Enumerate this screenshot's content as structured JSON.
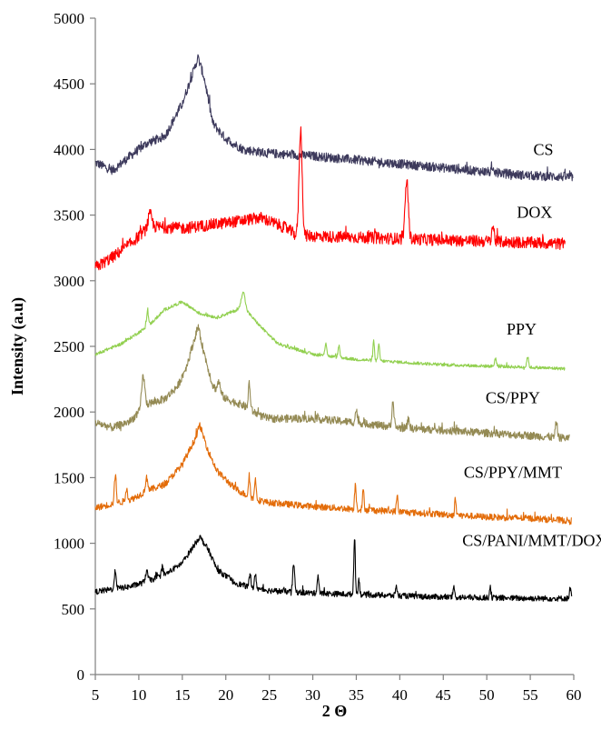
{
  "chart_data": {
    "type": "line",
    "xlabel": "2 Θ",
    "ylabel": "Intensity (a.u)",
    "xlim": [
      5,
      60
    ],
    "ylim": [
      0,
      5000
    ],
    "xticks": [
      5,
      10,
      15,
      20,
      25,
      30,
      35,
      40,
      45,
      50,
      55,
      60
    ],
    "yticks": [
      0,
      500,
      1000,
      1500,
      2000,
      2500,
      3000,
      3500,
      4000,
      4500,
      5000
    ],
    "grid": false,
    "series": [
      {
        "name": "CS",
        "color": "#3d3a5c",
        "x_end": 59.9,
        "label_position": [
          56.5,
          4000
        ],
        "baseline": [
          [
            5,
            3900
          ],
          [
            7,
            3840
          ],
          [
            9,
            3950
          ],
          [
            11,
            4050
          ],
          [
            13,
            4100
          ],
          [
            15,
            4350
          ],
          [
            16.3,
            4600
          ],
          [
            16.8,
            4700
          ],
          [
            17.5,
            4550
          ],
          [
            18.5,
            4200
          ],
          [
            20,
            4080
          ],
          [
            22,
            4000
          ],
          [
            25,
            3970
          ],
          [
            30,
            3950
          ],
          [
            35,
            3920
          ],
          [
            40,
            3890
          ],
          [
            45,
            3860
          ],
          [
            50,
            3830
          ],
          [
            55,
            3800
          ],
          [
            59.9,
            3790
          ]
        ],
        "peaks": [],
        "noise": 35
      },
      {
        "name": "DOX",
        "color": "#ff0000",
        "x_end": 59,
        "label_position": [
          55.5,
          3520
        ],
        "baseline": [
          [
            5,
            3100
          ],
          [
            7,
            3180
          ],
          [
            9,
            3280
          ],
          [
            11,
            3400
          ],
          [
            12,
            3410
          ],
          [
            15,
            3400
          ],
          [
            20,
            3440
          ],
          [
            24,
            3480
          ],
          [
            27,
            3400
          ],
          [
            28,
            3350
          ],
          [
            30,
            3340
          ],
          [
            35,
            3330
          ],
          [
            40,
            3320
          ],
          [
            45,
            3310
          ],
          [
            50,
            3300
          ],
          [
            55,
            3290
          ],
          [
            59,
            3280
          ]
        ],
        "peaks": [
          [
            28.6,
            800,
            0.25
          ],
          [
            40.8,
            450,
            0.25
          ],
          [
            11.3,
            100,
            0.3
          ],
          [
            50.7,
            120,
            0.2
          ]
        ],
        "noise": 45
      },
      {
        "name": "PPY",
        "color": "#92d050",
        "x_end": 59,
        "label_position": [
          54,
          2630
        ],
        "baseline": [
          [
            5,
            2440
          ],
          [
            8,
            2520
          ],
          [
            11,
            2650
          ],
          [
            13,
            2780
          ],
          [
            15,
            2840
          ],
          [
            17,
            2750
          ],
          [
            19,
            2720
          ],
          [
            21,
            2770
          ],
          [
            22,
            2800
          ],
          [
            24,
            2650
          ],
          [
            26,
            2520
          ],
          [
            30,
            2440
          ],
          [
            35,
            2400
          ],
          [
            40,
            2380
          ],
          [
            45,
            2360
          ],
          [
            50,
            2350
          ],
          [
            55,
            2340
          ],
          [
            59,
            2330
          ]
        ],
        "peaks": [
          [
            22,
            120,
            0.3
          ],
          [
            11,
            120,
            0.15
          ],
          [
            31.5,
            100,
            0.15
          ],
          [
            33,
            80,
            0.15
          ],
          [
            37,
            150,
            0.12
          ],
          [
            37.6,
            130,
            0.12
          ],
          [
            51,
            60,
            0.15
          ],
          [
            54.7,
            80,
            0.15
          ]
        ],
        "noise": 12
      },
      {
        "name": "CS/PPY",
        "color": "#948a54",
        "x_end": 59.5,
        "label_position": [
          53,
          2110
        ],
        "baseline": [
          [
            5,
            1920
          ],
          [
            7,
            1880
          ],
          [
            9,
            1930
          ],
          [
            11,
            2060
          ],
          [
            13,
            2100
          ],
          [
            14.5,
            2200
          ],
          [
            15.5,
            2350
          ],
          [
            16.8,
            2650
          ],
          [
            17.5,
            2450
          ],
          [
            18.5,
            2200
          ],
          [
            20,
            2100
          ],
          [
            22,
            2050
          ],
          [
            24,
            1970
          ],
          [
            25,
            1950
          ],
          [
            30,
            1950
          ],
          [
            35,
            1920
          ],
          [
            40,
            1880
          ],
          [
            45,
            1860
          ],
          [
            50,
            1840
          ],
          [
            55,
            1820
          ],
          [
            59.5,
            1800
          ]
        ],
        "peaks": [
          [
            10.5,
            250,
            0.25
          ],
          [
            22.7,
            200,
            0.15
          ],
          [
            19.2,
            80,
            0.2
          ],
          [
            35,
            100,
            0.15
          ],
          [
            39.2,
            200,
            0.15
          ],
          [
            41,
            80,
            0.15
          ],
          [
            58,
            120,
            0.15
          ]
        ],
        "noise": 30
      },
      {
        "name": "CS/PPY/MMT",
        "color": "#e36c09",
        "x_end": 59.8,
        "label_position": [
          53,
          1540
        ],
        "baseline": [
          [
            5,
            1270
          ],
          [
            7,
            1300
          ],
          [
            9,
            1330
          ],
          [
            11,
            1400
          ],
          [
            13,
            1450
          ],
          [
            15,
            1600
          ],
          [
            16.5,
            1800
          ],
          [
            17,
            1900
          ],
          [
            18,
            1700
          ],
          [
            19,
            1550
          ],
          [
            21,
            1420
          ],
          [
            23,
            1340
          ],
          [
            25,
            1310
          ],
          [
            30,
            1280
          ],
          [
            35,
            1260
          ],
          [
            40,
            1240
          ],
          [
            45,
            1220
          ],
          [
            50,
            1200
          ],
          [
            55,
            1190
          ],
          [
            59.8,
            1170
          ]
        ],
        "peaks": [
          [
            7.3,
            220,
            0.15
          ],
          [
            8.6,
            100,
            0.15
          ],
          [
            10.9,
            100,
            0.2
          ],
          [
            22.7,
            150,
            0.15
          ],
          [
            23.4,
            150,
            0.15
          ],
          [
            34.9,
            200,
            0.12
          ],
          [
            35.8,
            150,
            0.12
          ],
          [
            39.7,
            120,
            0.12
          ],
          [
            46.4,
            130,
            0.12
          ]
        ],
        "noise": 25
      },
      {
        "name": "CS/PANI/MMT/DOX",
        "color": "#000000",
        "x_end": 59.8,
        "label_position": [
          55.5,
          1020
        ],
        "baseline": [
          [
            5,
            630
          ],
          [
            7,
            650
          ],
          [
            9,
            670
          ],
          [
            11,
            710
          ],
          [
            13,
            760
          ],
          [
            15,
            850
          ],
          [
            16.5,
            1000
          ],
          [
            17,
            1050
          ],
          [
            18,
            950
          ],
          [
            19,
            800
          ],
          [
            21,
            700
          ],
          [
            23,
            660
          ],
          [
            25,
            640
          ],
          [
            30,
            620
          ],
          [
            35,
            610
          ],
          [
            40,
            600
          ],
          [
            45,
            590
          ],
          [
            50,
            585
          ],
          [
            55,
            580
          ],
          [
            59.8,
            580
          ]
        ],
        "peaks": [
          [
            7.3,
            140,
            0.15
          ],
          [
            10.9,
            80,
            0.2
          ],
          [
            12.7,
            70,
            0.15
          ],
          [
            22.8,
            100,
            0.15
          ],
          [
            23.4,
            100,
            0.15
          ],
          [
            27.8,
            220,
            0.15
          ],
          [
            30.6,
            130,
            0.15
          ],
          [
            34.8,
            440,
            0.12
          ],
          [
            35.3,
            120,
            0.12
          ],
          [
            39.6,
            80,
            0.12
          ],
          [
            46.2,
            80,
            0.12
          ],
          [
            50.4,
            90,
            0.12
          ],
          [
            59.6,
            80,
            0.12
          ]
        ],
        "noise": 22
      }
    ]
  }
}
